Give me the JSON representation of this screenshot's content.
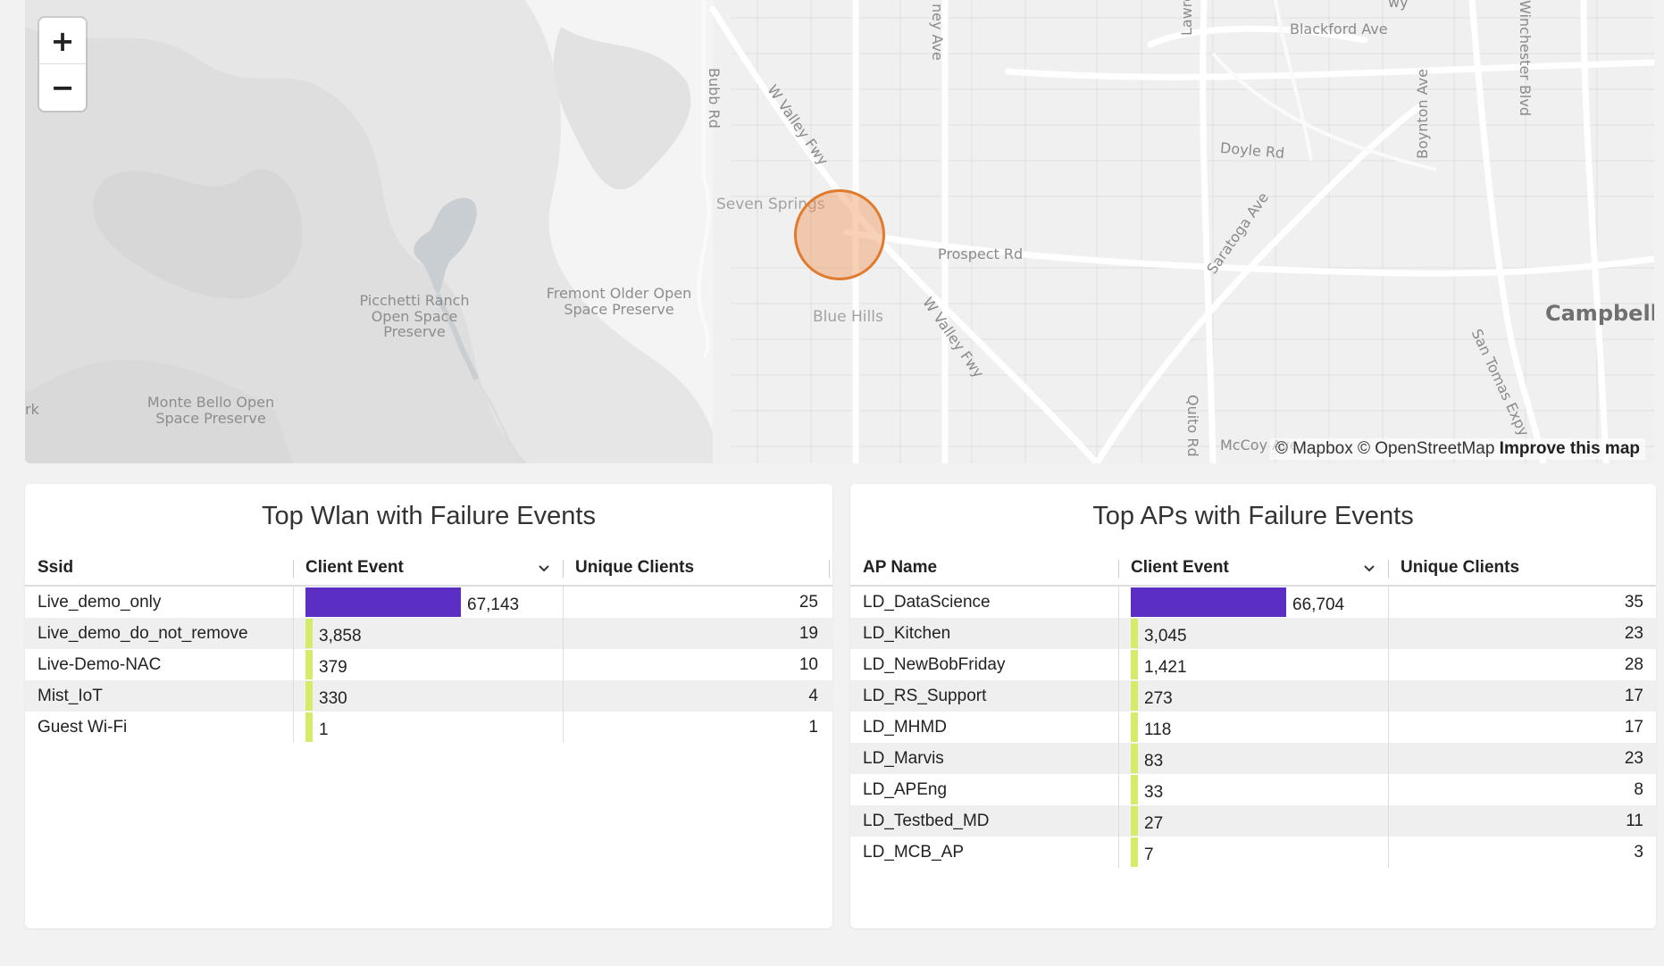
{
  "map": {
    "zoom_in": "+",
    "zoom_out": "−",
    "attribution": "© Mapbox © OpenStreetMap",
    "improve_link": "Improve this map",
    "labels": {
      "blackford": "Blackford Ave",
      "winchester": "Winchester Blvd",
      "lawrence": "Lawrence",
      "stelling": "ney Ave",
      "bubb": "Bubb Rd",
      "wvalley1": "W Valley Fwy",
      "wvalley2": "W Valley Fwy",
      "doyle": "Doyle Rd",
      "boynton": "Boynton Ave",
      "seven_springs": "Seven Springs",
      "prospect": "Prospect Rd",
      "saratoga": "Saratoga Ave",
      "campbell": "Campbell",
      "picchetti": "Picchetti Ranch\nOpen Space\nPreserve",
      "fremont": "Fremont Older Open\nSpace Preserve",
      "blue_hills": "Blue Hills",
      "san_tomas": "San Tomas Expy",
      "monte_bello": "Monte Bello Open\nSpace Preserve",
      "quito": "Quito Rd",
      "mccoy": "McCoy Ave",
      "edge_rk": "rk",
      "edge_wy": "wy"
    }
  },
  "colors": {
    "bar_max": "#5b2fc4",
    "bar_small": "#d4ec6a",
    "marker_fill": "#f0965a",
    "marker_stroke": "#e07a2c"
  },
  "wlan": {
    "title": "Top Wlan with Failure Events",
    "columns": [
      "Ssid",
      "Client Event",
      "Unique Clients"
    ],
    "rows": [
      {
        "name": "Live_demo_only",
        "event": "67,143",
        "event_value": 67143,
        "clients": "25"
      },
      {
        "name": "Live_demo_do_not_remove",
        "event": "3,858",
        "event_value": 3858,
        "clients": "19"
      },
      {
        "name": "Live-Demo-NAC",
        "event": "379",
        "event_value": 379,
        "clients": "10"
      },
      {
        "name": "Mist_IoT",
        "event": "330",
        "event_value": 330,
        "clients": "4"
      },
      {
        "name": "Guest Wi-Fi",
        "event": "1",
        "event_value": 1,
        "clients": "1"
      }
    ]
  },
  "aps": {
    "title": "Top APs with Failure Events",
    "columns": [
      "AP Name",
      "Client Event",
      "Unique Clients"
    ],
    "rows": [
      {
        "name": "LD_DataScience",
        "event": "66,704",
        "event_value": 66704,
        "clients": "35"
      },
      {
        "name": "LD_Kitchen",
        "event": "3,045",
        "event_value": 3045,
        "clients": "23"
      },
      {
        "name": "LD_NewBobFriday",
        "event": "1,421",
        "event_value": 1421,
        "clients": "28"
      },
      {
        "name": "LD_RS_Support",
        "event": "273",
        "event_value": 273,
        "clients": "17"
      },
      {
        "name": "LD_MHMD",
        "event": "118",
        "event_value": 118,
        "clients": "17"
      },
      {
        "name": "LD_Marvis",
        "event": "83",
        "event_value": 83,
        "clients": "23"
      },
      {
        "name": "LD_APEng",
        "event": "33",
        "event_value": 33,
        "clients": "8"
      },
      {
        "name": "LD_Testbed_MD",
        "event": "27",
        "event_value": 27,
        "clients": "11"
      },
      {
        "name": "LD_MCB_AP",
        "event": "7",
        "event_value": 7,
        "clients": "3"
      }
    ]
  }
}
